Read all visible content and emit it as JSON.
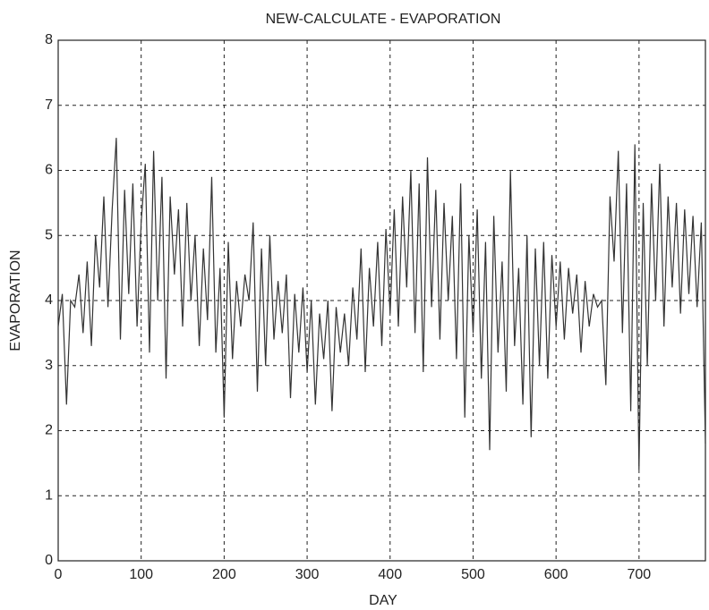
{
  "chart_data": {
    "type": "line",
    "title": "NEW-CALCULATE - EVAPORATION",
    "x_label": "DAY",
    "y_label": "EVAPORATION",
    "x": [
      0,
      5,
      10,
      15,
      20,
      25,
      30,
      35,
      40,
      45,
      50,
      55,
      60,
      65,
      70,
      75,
      80,
      85,
      90,
      95,
      100,
      105,
      110,
      115,
      120,
      125,
      130,
      135,
      140,
      145,
      150,
      155,
      160,
      165,
      170,
      175,
      180,
      185,
      190,
      195,
      200,
      205,
      210,
      215,
      220,
      225,
      230,
      235,
      240,
      245,
      250,
      255,
      260,
      265,
      270,
      275,
      280,
      285,
      290,
      295,
      300,
      305,
      310,
      315,
      320,
      325,
      330,
      335,
      340,
      345,
      350,
      355,
      360,
      365,
      370,
      375,
      380,
      385,
      390,
      395,
      400,
      405,
      410,
      415,
      420,
      425,
      430,
      435,
      440,
      445,
      450,
      455,
      460,
      465,
      470,
      475,
      480,
      485,
      490,
      495,
      500,
      505,
      510,
      515,
      520,
      525,
      530,
      535,
      540,
      545,
      550,
      555,
      560,
      565,
      570,
      575,
      580,
      585,
      590,
      595,
      600,
      605,
      610,
      615,
      620,
      625,
      630,
      635,
      640,
      645,
      650,
      655,
      660,
      665,
      670,
      675,
      680,
      685,
      690,
      695,
      700,
      705,
      710,
      715,
      720,
      725,
      730,
      735,
      740,
      745,
      750,
      755,
      760,
      765,
      770,
      775,
      780
    ],
    "series": [
      {
        "name": "EVAPORATION",
        "color": "#333333",
        "values": [
          3.6,
          4.1,
          2.4,
          4.0,
          3.9,
          4.4,
          3.5,
          4.6,
          3.3,
          5.0,
          4.2,
          5.6,
          3.9,
          5.4,
          6.5,
          3.4,
          5.7,
          4.1,
          5.8,
          3.6,
          5.2,
          6.1,
          3.2,
          6.3,
          4.0,
          5.9,
          2.8,
          5.6,
          4.4,
          5.4,
          3.6,
          5.5,
          4.0,
          5.0,
          3.3,
          4.8,
          3.7,
          5.9,
          3.2,
          4.5,
          2.2,
          4.9,
          3.1,
          4.3,
          3.6,
          4.4,
          4.0,
          5.2,
          2.6,
          4.8,
          3.0,
          5.0,
          3.4,
          4.3,
          3.5,
          4.4,
          2.5,
          4.1,
          3.2,
          4.2,
          2.9,
          4.0,
          2.4,
          3.8,
          3.1,
          4.0,
          2.3,
          3.9,
          3.2,
          3.8,
          3.0,
          4.2,
          3.4,
          4.8,
          2.9,
          4.5,
          3.6,
          4.9,
          3.3,
          5.1,
          3.8,
          5.4,
          3.6,
          5.6,
          4.2,
          6.0,
          3.5,
          5.8,
          2.9,
          6.2,
          3.9,
          5.7,
          3.4,
          5.5,
          4.0,
          5.3,
          3.1,
          5.8,
          2.2,
          5.0,
          3.5,
          5.4,
          2.8,
          4.9,
          1.7,
          5.3,
          3.2,
          4.6,
          2.6,
          6.0,
          3.3,
          4.5,
          2.4,
          5.0,
          1.9,
          4.8,
          3.0,
          4.9,
          2.8,
          4.7,
          3.6,
          4.6,
          3.4,
          4.5,
          3.8,
          4.4,
          3.2,
          4.3,
          3.6,
          4.1,
          3.9,
          4.0,
          2.7,
          5.6,
          4.6,
          6.3,
          3.5,
          5.8,
          2.3,
          6.4,
          1.4,
          5.5,
          3.0,
          5.8,
          4.0,
          6.1,
          3.6,
          5.6,
          4.2,
          5.5,
          3.8,
          5.4,
          4.1,
          5.3,
          3.9,
          5.2,
          1.8
        ]
      }
    ],
    "xlim": [
      0,
      780
    ],
    "ylim": [
      0,
      8
    ],
    "xticks": [
      0,
      100,
      200,
      300,
      400,
      500,
      600,
      700
    ],
    "yticks": [
      0,
      1,
      2,
      3,
      4,
      5,
      6,
      7,
      8
    ],
    "grid": true
  }
}
